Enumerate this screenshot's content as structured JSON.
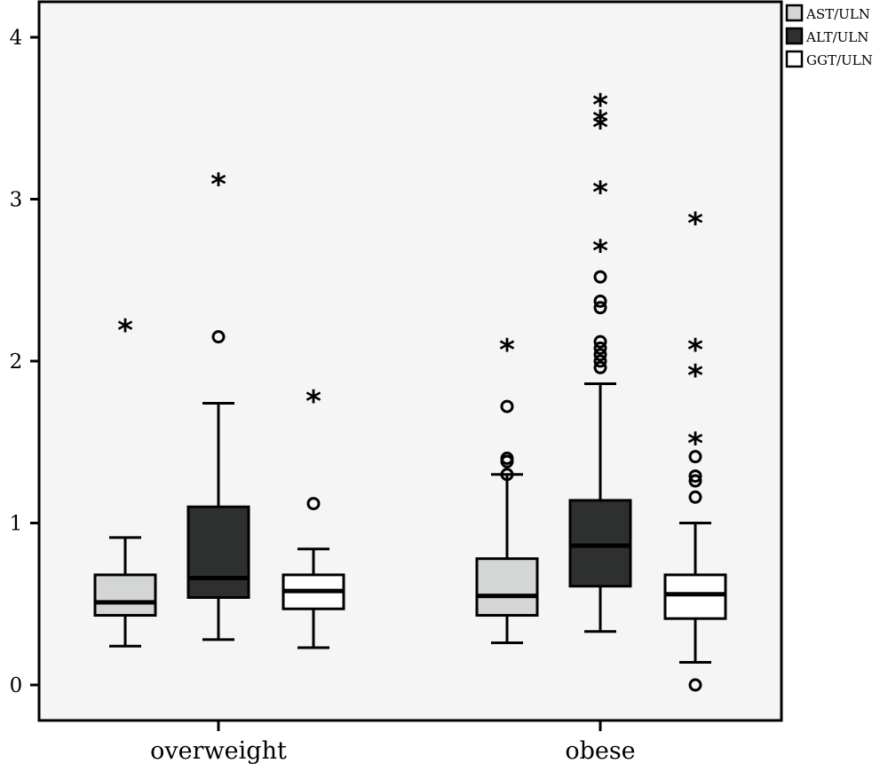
{
  "chart_data": {
    "type": "boxplot",
    "categories": [
      "overweight",
      "obese"
    ],
    "ylim": [
      -0.22,
      4.22
    ],
    "yticks": [
      0,
      1,
      2,
      3,
      4
    ],
    "grid": false,
    "legend_position": "top-right",
    "series": [
      {
        "name": "AST/ULN",
        "color": "#d3d6d4",
        "boxes": [
          {
            "whisker_low": 0.24,
            "q1": 0.43,
            "median": 0.51,
            "q3": 0.68,
            "whisker_high": 0.91,
            "outliers": [],
            "extremes": [
              2.22
            ]
          },
          {
            "whisker_low": 0.26,
            "q1": 0.43,
            "median": 0.55,
            "q3": 0.78,
            "whisker_high": 1.3,
            "outliers": [
              1.3,
              1.38,
              1.4,
              1.72
            ],
            "extremes": [
              2.1
            ]
          }
        ]
      },
      {
        "name": "ALT/ULN",
        "color": "#2e302f",
        "boxes": [
          {
            "whisker_low": 0.28,
            "q1": 0.54,
            "median": 0.66,
            "q3": 1.1,
            "whisker_high": 1.74,
            "outliers": [
              2.15
            ],
            "extremes": [
              3.12
            ]
          },
          {
            "whisker_low": 0.33,
            "q1": 0.61,
            "median": 0.86,
            "q3": 1.14,
            "whisker_high": 1.86,
            "outliers": [
              1.96,
              2.0,
              2.04,
              2.08,
              2.12,
              2.33,
              2.37,
              2.52
            ],
            "extremes": [
              2.71,
              3.07,
              3.47,
              3.51,
              3.61
            ]
          }
        ]
      },
      {
        "name": "GGT/ULN",
        "color": "#ffffff",
        "boxes": [
          {
            "whisker_low": 0.23,
            "q1": 0.47,
            "median": 0.58,
            "q3": 0.68,
            "whisker_high": 0.84,
            "outliers": [
              1.12
            ],
            "extremes": [
              1.78
            ]
          },
          {
            "whisker_low": 0.14,
            "q1": 0.41,
            "median": 0.56,
            "q3": 0.68,
            "whisker_high": 1.0,
            "outliers": [
              0.0,
              1.16,
              1.26,
              1.29,
              1.41
            ],
            "extremes": [
              1.52,
              1.94,
              2.1,
              2.88
            ]
          }
        ]
      }
    ]
  }
}
